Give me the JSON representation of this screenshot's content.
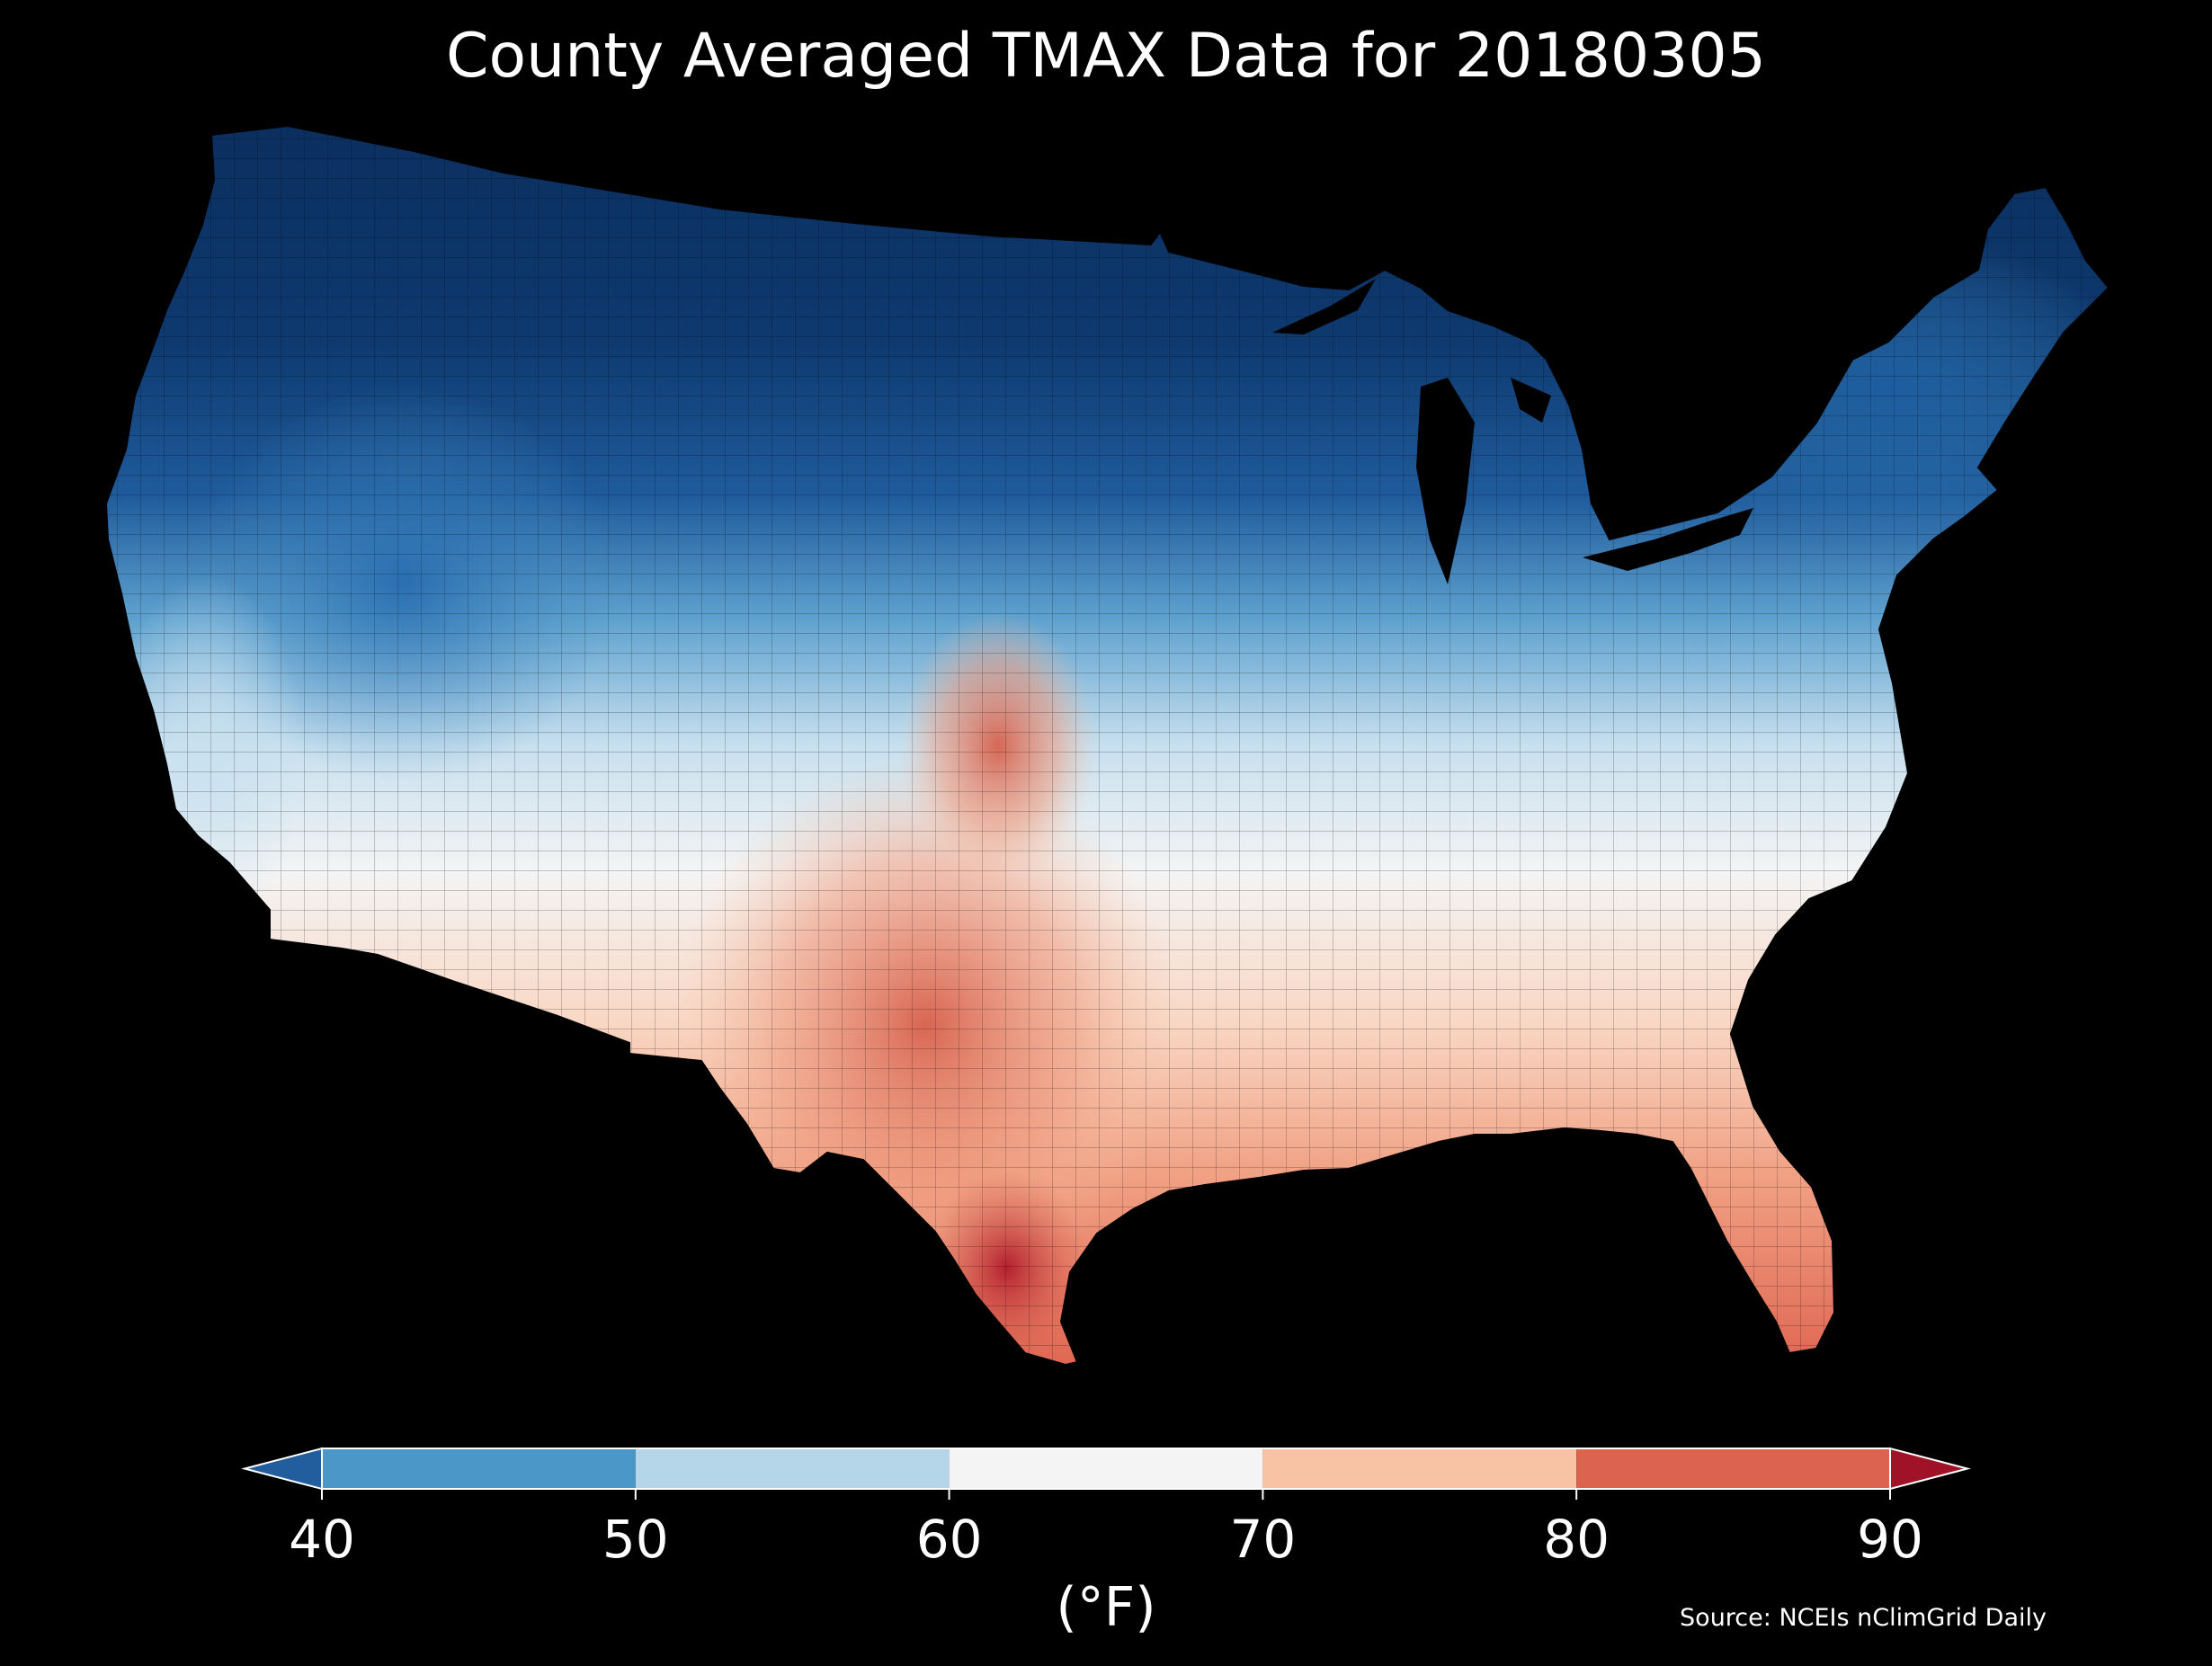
{
  "title": "County Averaged TMAX Data for 20180305",
  "colorbar": {
    "unit_label": "(°F)",
    "ticks": [
      "40",
      "50",
      "60",
      "70",
      "80",
      "90"
    ],
    "bins": [
      {
        "range": [
          40,
          50
        ],
        "color": "#4b98c8"
      },
      {
        "range": [
          50,
          60
        ],
        "color": "#b5d6e8"
      },
      {
        "range": [
          60,
          70
        ],
        "color": "#f4f4f4"
      },
      {
        "range": [
          70,
          80
        ],
        "color": "#f8c2a4"
      },
      {
        "range": [
          80,
          90
        ],
        "color": "#dc6350"
      }
    ],
    "under_color": "#225e9e",
    "over_color": "#a01228",
    "extend": "both"
  },
  "source": "Source: NCEIs nClimGrid Daily",
  "map": {
    "region": "Contiguous United States",
    "variable": "TMAX",
    "background": "#000000",
    "boundary_color": "#000000",
    "palette": "RdBu_r"
  }
}
